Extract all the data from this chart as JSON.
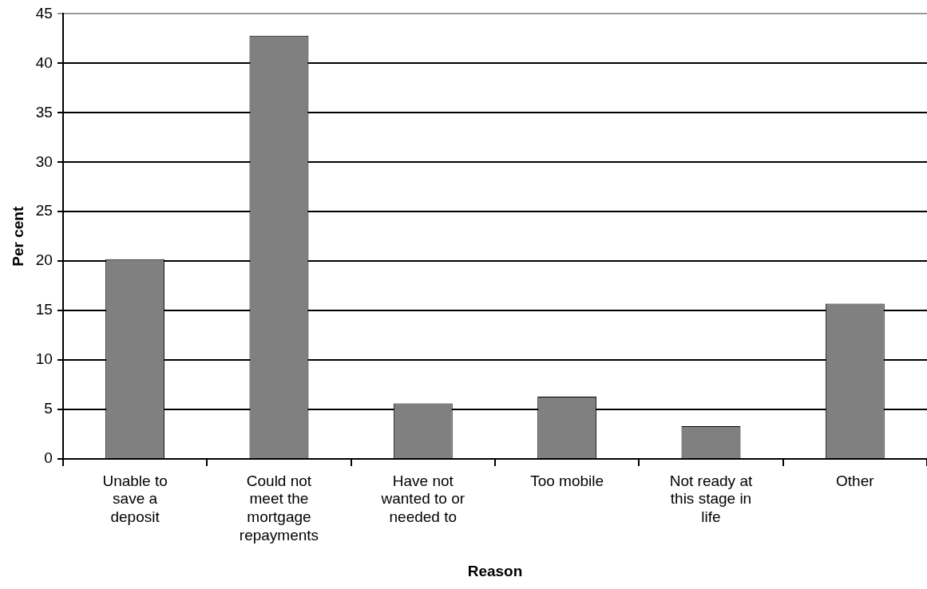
{
  "chart_data": {
    "type": "bar",
    "xlabel": "Reason",
    "ylabel": "Per cent",
    "categories": [
      "Unable to save a deposit",
      "Could not meet the mortgage repayments",
      "Have not wanted to or needed to",
      "Too mobile",
      "Not ready at this stage in life",
      "Other"
    ],
    "values": [
      20.2,
      42.8,
      5.6,
      6.3,
      3.3,
      15.7
    ],
    "color": "#808080",
    "ylim": [
      0,
      45
    ],
    "yticks": [
      0,
      5,
      10,
      15,
      20,
      25,
      30,
      35,
      40,
      45
    ],
    "grid": "y",
    "legend": false
  }
}
